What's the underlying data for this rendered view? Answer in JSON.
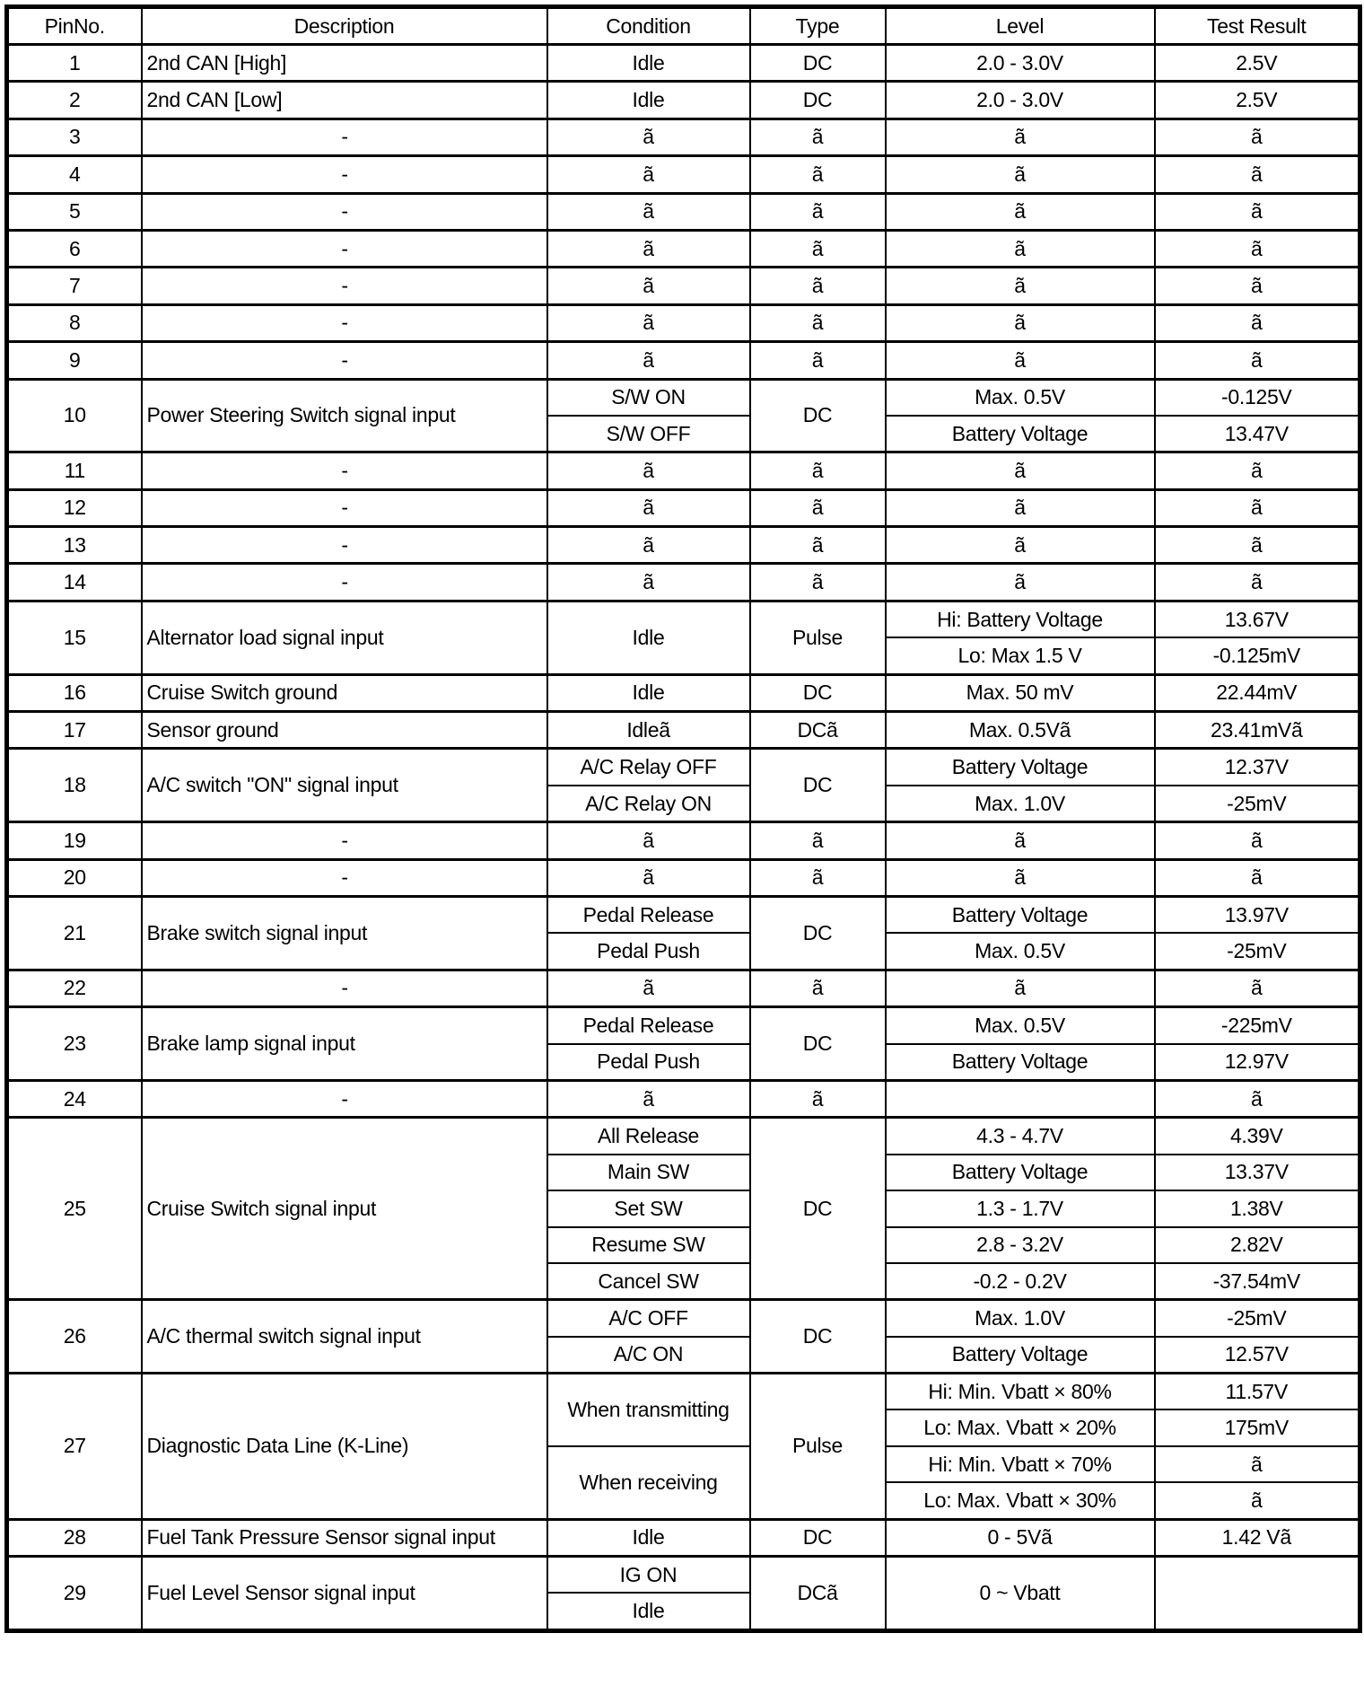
{
  "headers": [
    "PinNo.",
    "Description",
    "Condition",
    "Type",
    "Level",
    "Test Result"
  ],
  "rows": [
    {
      "pin": "1",
      "description": "2nd CAN [High]",
      "conditions": [
        "Idle"
      ],
      "type": "DC",
      "levels": [
        "2.0 - 3.0V"
      ],
      "results": [
        "2.5V"
      ]
    },
    {
      "pin": "2",
      "description": "2nd CAN [Low]",
      "conditions": [
        "Idle"
      ],
      "type": "DC",
      "levels": [
        "2.0 - 3.0V"
      ],
      "results": [
        "2.5V"
      ]
    },
    {
      "pin": "3",
      "description": "-",
      "conditions": [
        "ã"
      ],
      "type": "ã",
      "levels": [
        "ã"
      ],
      "results": [
        "ã"
      ]
    },
    {
      "pin": "4",
      "description": "-",
      "conditions": [
        "ã"
      ],
      "type": "ã",
      "levels": [
        "ã"
      ],
      "results": [
        "ã"
      ]
    },
    {
      "pin": "5",
      "description": "-",
      "conditions": [
        "ã"
      ],
      "type": "ã",
      "levels": [
        "ã"
      ],
      "results": [
        "ã"
      ]
    },
    {
      "pin": "6",
      "description": "-",
      "conditions": [
        "ã"
      ],
      "type": "ã",
      "levels": [
        "ã"
      ],
      "results": [
        "ã"
      ]
    },
    {
      "pin": "7",
      "description": "-",
      "conditions": [
        "ã"
      ],
      "type": "ã",
      "levels": [
        "ã"
      ],
      "results": [
        "ã"
      ]
    },
    {
      "pin": "8",
      "description": "-",
      "conditions": [
        "ã"
      ],
      "type": "ã",
      "levels": [
        "ã"
      ],
      "results": [
        "ã"
      ]
    },
    {
      "pin": "9",
      "description": "-",
      "conditions": [
        "ã"
      ],
      "type": "ã",
      "levels": [
        "ã"
      ],
      "results": [
        "ã"
      ]
    },
    {
      "pin": "10",
      "description": "Power Steering Switch signal input",
      "conditions": [
        "S/W ON",
        "S/W OFF"
      ],
      "type": "DC",
      "levels": [
        "Max. 0.5V",
        "Battery Voltage"
      ],
      "results": [
        "-0.125V",
        "13.47V"
      ]
    },
    {
      "pin": "11",
      "description": "-",
      "conditions": [
        "ã"
      ],
      "type": "ã",
      "levels": [
        "ã"
      ],
      "results": [
        "ã"
      ]
    },
    {
      "pin": "12",
      "description": "-",
      "conditions": [
        "ã"
      ],
      "type": "ã",
      "levels": [
        "ã"
      ],
      "results": [
        "ã"
      ]
    },
    {
      "pin": "13",
      "description": "-",
      "conditions": [
        "ã"
      ],
      "type": "ã",
      "levels": [
        "ã"
      ],
      "results": [
        "ã"
      ]
    },
    {
      "pin": "14",
      "description": "-",
      "conditions": [
        "ã"
      ],
      "type": "ã",
      "levels": [
        "ã"
      ],
      "results": [
        "ã"
      ]
    },
    {
      "pin": "15",
      "description": "Alternator load signal input",
      "conditions": [
        "Idle"
      ],
      "type": "Pulse",
      "levels": [
        "Hi: Battery Voltage",
        "Lo: Max 1.5 V"
      ],
      "results": [
        "13.67V",
        "-0.125mV"
      ]
    },
    {
      "pin": "16",
      "description": "Cruise Switch ground",
      "conditions": [
        "Idle"
      ],
      "type": "DC",
      "levels": [
        "Max. 50 mV"
      ],
      "results": [
        "22.44mV"
      ]
    },
    {
      "pin": "17",
      "description": "Sensor ground",
      "conditions": [
        "Idleã"
      ],
      "type": "DCã",
      "levels": [
        "Max. 0.5Vã"
      ],
      "results": [
        "23.41mVã"
      ]
    },
    {
      "pin": "18",
      "description": "A/C switch \"ON\" signal input",
      "conditions": [
        "A/C Relay OFF",
        "A/C Relay ON"
      ],
      "type": "DC",
      "levels": [
        "Battery Voltage",
        "Max. 1.0V"
      ],
      "results": [
        "12.37V",
        "-25mV"
      ]
    },
    {
      "pin": "19",
      "description": "-",
      "conditions": [
        "ã"
      ],
      "type": "ã",
      "levels": [
        "ã"
      ],
      "results": [
        "ã"
      ]
    },
    {
      "pin": "20",
      "description": "-",
      "conditions": [
        "ã"
      ],
      "type": "ã",
      "levels": [
        "ã"
      ],
      "results": [
        "ã"
      ]
    },
    {
      "pin": "21",
      "description": "Brake switch signal input",
      "conditions": [
        "Pedal Release",
        "Pedal Push"
      ],
      "type": "DC",
      "levels": [
        "Battery Voltage",
        "Max. 0.5V"
      ],
      "results": [
        "13.97V",
        "-25mV"
      ]
    },
    {
      "pin": "22",
      "description": "-",
      "conditions": [
        "ã"
      ],
      "type": "ã",
      "levels": [
        "ã"
      ],
      "results": [
        "ã"
      ]
    },
    {
      "pin": "23",
      "description": "Brake lamp signal input",
      "conditions": [
        "Pedal Release",
        "Pedal Push"
      ],
      "type": "DC",
      "levels": [
        "Max. 0.5V",
        "Battery Voltage"
      ],
      "results": [
        "-225mV",
        "12.97V"
      ]
    },
    {
      "pin": "24",
      "description": "-",
      "conditions": [
        "ã"
      ],
      "type": "ã",
      "levels": [
        ""
      ],
      "results": [
        "ã"
      ]
    },
    {
      "pin": "25",
      "description": "Cruise Switch signal input",
      "conditions": [
        "All Release",
        "Main SW",
        "Set SW",
        "Resume SW",
        "Cancel SW"
      ],
      "type": "DC",
      "levels": [
        "4.3 - 4.7V",
        "Battery Voltage",
        "1.3 - 1.7V",
        "2.8 - 3.2V",
        "-0.2 - 0.2V"
      ],
      "results": [
        "4.39V",
        "13.37V",
        "1.38V",
        "2.82V",
        "-37.54mV"
      ]
    },
    {
      "pin": "26",
      "description": "A/C thermal switch signal input",
      "conditions": [
        "A/C OFF",
        "A/C ON"
      ],
      "type": "DC",
      "levels": [
        "Max. 1.0V",
        "Battery Voltage"
      ],
      "results": [
        "-25mV",
        "12.57V"
      ]
    },
    {
      "pin": "27",
      "description": "Diagnostic Data Line (K-Line)",
      "conditions": [
        "When transmitting",
        "When receiving"
      ],
      "type": "Pulse",
      "levels": [
        "Hi: Min. Vbatt × 80%",
        "Lo: Max. Vbatt × 20%",
        "Hi: Min. Vbatt × 70%",
        "Lo: Max. Vbatt × 30%"
      ],
      "results": [
        "11.57V",
        "175mV",
        "ã",
        "ã"
      ]
    },
    {
      "pin": "28",
      "description": "Fuel Tank Pressure Sensor signal input",
      "conditions": [
        "Idle"
      ],
      "type": "DC",
      "levels": [
        "0 - 5Vã"
      ],
      "results": [
        "1.42 Vã"
      ]
    },
    {
      "pin": "29",
      "description": "Fuel Level Sensor signal input",
      "conditions": [
        "IG ON",
        "Idle"
      ],
      "type": "DCã",
      "levels": [
        "0 ~ Vbatt"
      ],
      "results": [
        ""
      ]
    }
  ]
}
